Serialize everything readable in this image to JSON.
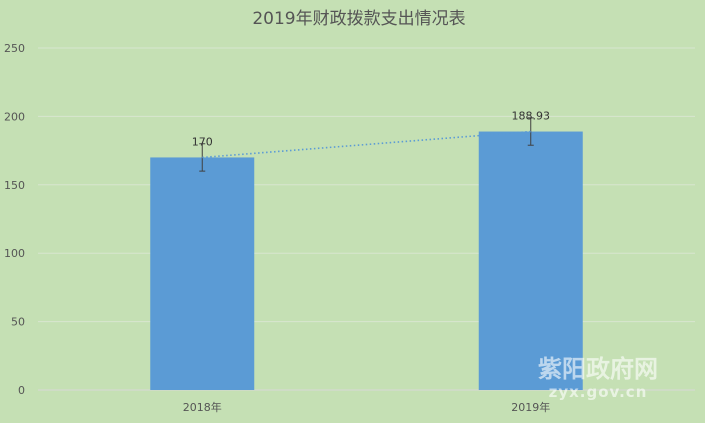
{
  "chart_data": {
    "type": "bar",
    "title": "2019年财政拨款支出情况表",
    "categories": [
      "2018年",
      "2019年"
    ],
    "values": [
      170,
      188.93
    ],
    "data_labels": [
      "170",
      "188.93"
    ],
    "ylim": [
      0,
      250
    ],
    "yticks": [
      0,
      50,
      100,
      150,
      200,
      250
    ],
    "grid": true,
    "error_bars": true,
    "trendline": "dotted",
    "bar_color": "#5b9bd5",
    "trend_color": "#5b9bd5",
    "background": "#c5e0b4"
  },
  "watermark": {
    "name": "紫阳政府网",
    "url": "zyx.gov.cn"
  }
}
